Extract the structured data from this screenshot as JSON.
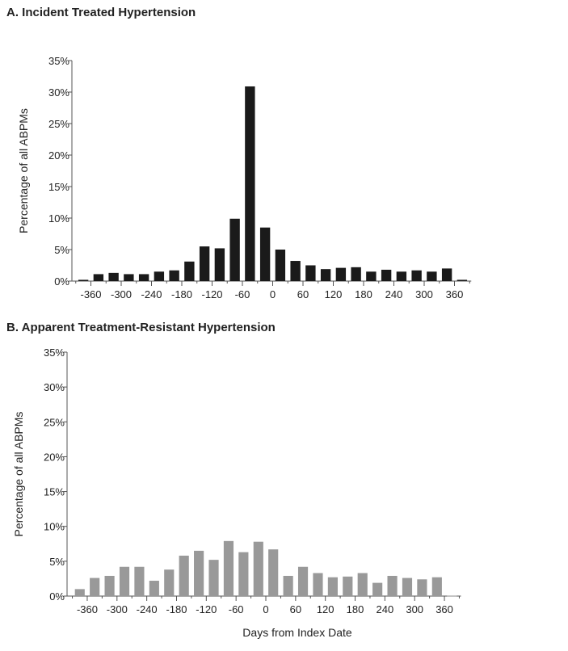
{
  "chart_data": [
    {
      "type": "bar",
      "title": "A. Incident Treated Hypertension",
      "xlabel": "",
      "ylabel": "Percentage of all ABPMs",
      "ylim": [
        0,
        35
      ],
      "xlim": [
        -390,
        390
      ],
      "bin_width_days": 30,
      "x": [
        -375,
        -345,
        -315,
        -285,
        -255,
        -225,
        -195,
        -165,
        -135,
        -105,
        -75,
        -45,
        -15,
        15,
        45,
        75,
        105,
        135,
        165,
        195,
        225,
        255,
        285,
        315,
        345,
        375
      ],
      "values": [
        0.2,
        1.1,
        1.3,
        1.1,
        1.1,
        1.5,
        1.7,
        3.1,
        5.5,
        5.2,
        9.9,
        30.9,
        8.5,
        5.0,
        3.2,
        2.5,
        1.9,
        2.1,
        2.2,
        1.5,
        1.8,
        1.5,
        1.7,
        1.5,
        2.0,
        0.2
      ],
      "color": "#1a1a1a",
      "yticks": [
        "0%",
        "5%",
        "10%",
        "15%",
        "20%",
        "25%",
        "30%",
        "35%"
      ],
      "xticks": [
        "-360",
        "-300",
        "-240",
        "-180",
        "-120",
        "-60",
        "0",
        "60",
        "120",
        "180",
        "240",
        "300",
        "360"
      ]
    },
    {
      "type": "bar",
      "title": "B. Apparent Treatment-Resistant Hypertension",
      "xlabel": "Days from Index Date",
      "ylabel": "Percentage of all ABPMs",
      "ylim": [
        0,
        35
      ],
      "xlim": [
        -390,
        390
      ],
      "bin_width_days": 30,
      "x": [
        -375,
        -345,
        -315,
        -285,
        -255,
        -225,
        -195,
        -165,
        -135,
        -105,
        -75,
        -45,
        -15,
        15,
        45,
        75,
        105,
        135,
        165,
        195,
        225,
        255,
        285,
        315,
        345,
        375
      ],
      "values": [
        1.0,
        2.6,
        2.9,
        4.2,
        4.2,
        2.2,
        3.8,
        5.8,
        6.5,
        5.2,
        7.9,
        6.3,
        7.8,
        6.7,
        2.9,
        4.2,
        3.3,
        2.7,
        2.8,
        3.3,
        1.9,
        2.9,
        2.6,
        2.4,
        2.7,
        0.05
      ],
      "color": "#999999",
      "yticks": [
        "0%",
        "5%",
        "10%",
        "15%",
        "20%",
        "25%",
        "30%",
        "35%"
      ],
      "xticks": [
        "-360",
        "-300",
        "-240",
        "-180",
        "-120",
        "-60",
        "0",
        "60",
        "120",
        "180",
        "240",
        "300",
        "360"
      ]
    }
  ]
}
